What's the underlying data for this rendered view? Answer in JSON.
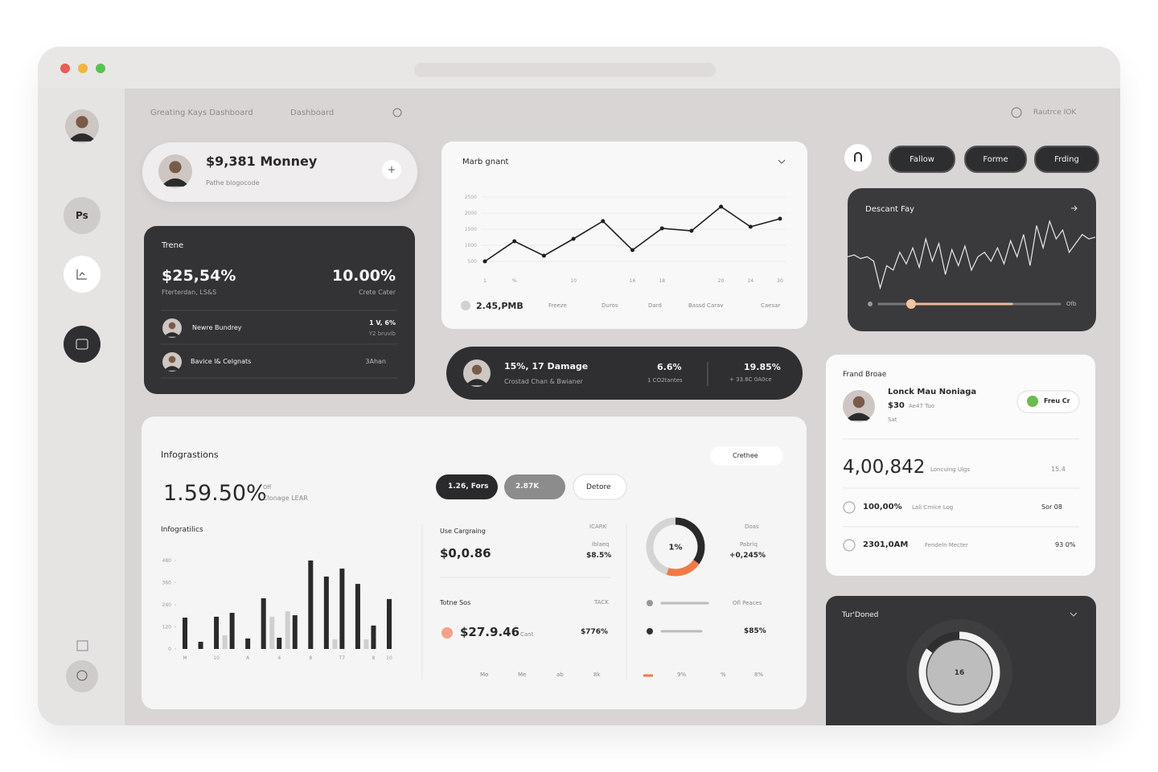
{
  "nav": {
    "title": "Greating Kays Dashboard",
    "tab": "Dashboard",
    "user": "Rautrce IOK"
  },
  "sidebar": {
    "badge": "Ps"
  },
  "profile_card": {
    "amount": "$9,381 Monney",
    "subtitle": "Pathe blogocode"
  },
  "trend_card": {
    "title": "Trene",
    "left_value": "$25,54%",
    "left_label": "Fterterdan, LS&S",
    "right_value": "10.00%",
    "right_label": "Crete Cater",
    "rows": [
      {
        "name": "Newre Bundrey",
        "value": "1 V, 6%",
        "note": "Y2 bruvib"
      },
      {
        "name": "Bavice l& Celgnats",
        "value": "3Ahan"
      }
    ]
  },
  "line_card": {
    "title": "Marb gnant",
    "chart": {
      "type": "line",
      "color": "#1f1f21",
      "ylim": [
        500,
        2500
      ],
      "yticks": [
        500,
        1000,
        1500,
        2000,
        2500
      ],
      "grid": true,
      "categories": [
        "1",
        "%",
        null,
        "10",
        null,
        "16",
        "18",
        null,
        "20",
        "24",
        "30"
      ],
      "values": [
        500,
        1125,
        675,
        1200,
        1750,
        850,
        1525,
        1450,
        2200,
        1575,
        1825
      ]
    },
    "legend": {
      "value": "2.45,PMB",
      "items": [
        "Freeze",
        "Duros",
        "Dard",
        "Bassd Carav",
        "Caesar"
      ]
    }
  },
  "actions": [
    "Fallow",
    "Forme",
    "Frding"
  ],
  "spark_card": {
    "title": "Descant Fay",
    "chart": {
      "type": "line",
      "color": "#e8e8e8",
      "values": [
        50,
        52,
        48,
        50,
        45,
        15,
        40,
        35,
        55,
        42,
        60,
        38,
        70,
        45,
        65,
        30,
        58,
        40,
        62,
        35,
        50,
        55,
        45,
        60,
        42,
        68,
        50,
        75,
        40,
        85,
        60,
        90,
        70,
        80,
        55,
        65,
        75,
        70,
        72
      ]
    },
    "slider_label": "Ofb"
  },
  "damage_strip": {
    "title": "15%, 17 Damage",
    "subtitle": "Crostad Chan & Bwianer",
    "stat1": {
      "value": "6.6%",
      "label": "1 CO2tantes"
    },
    "stat2": {
      "value": "19.85%",
      "label": "+ 33.8C 0A0ce"
    }
  },
  "friend_card": {
    "title": "Frand Broae",
    "name": "Lonck Mau Noniaga",
    "price": "$30",
    "meta": "Ae47 Tuo",
    "rating_label": "Sat",
    "button": "Freu Cr",
    "total": "4,00,842",
    "total_label": "Loncuing Ulgs",
    "total_change": "15.4",
    "rows": [
      {
        "value": "100,00%",
        "label": "Lali Crnice Log",
        "right": "Sor 08"
      },
      {
        "value": "2301,0AM",
        "label": "Fendeln Mecter",
        "right": "93 0%"
      }
    ]
  },
  "info_card": {
    "title": "Infograstions",
    "big_value": "1.59.50%",
    "big_unit": "Off",
    "big_label": "Clonage LEAR",
    "buttons": [
      "1.26, Fors",
      "2.87K",
      "Detore"
    ],
    "dropdown": "Crethee",
    "chart_title": "Infogratilics",
    "bar_chart": {
      "type": "bar",
      "ylim": [
        0,
        480
      ],
      "yticks": [
        0,
        120,
        240,
        360,
        480
      ],
      "categories": [
        "M",
        null,
        "10",
        null,
        "A",
        null,
        "4",
        null,
        "8",
        null,
        "T7",
        null,
        "8",
        "10"
      ],
      "series": [
        {
          "color": "#2a2a2c",
          "values": [
            170,
            39,
            175,
            196,
            57,
            275,
            61,
            183,
            480,
            393,
            436,
            353,
            127,
            271
          ]
        },
        {
          "color": "#cfcfcf",
          "values": [
            null,
            null,
            null,
            74,
            null,
            null,
            175,
            205,
            null,
            null,
            52,
            null,
            52,
            null
          ]
        }
      ]
    },
    "stats": {
      "title": "Use Cargraing",
      "value": "$0,0.86",
      "tag": "ICARK",
      "sub": "Iblaeq",
      "side_value": "$8.5%",
      "title2": "Totne Sos",
      "value2": "$27.9.46",
      "unit2": "Cant",
      "side_value2": "$776%",
      "tag2": "TACK",
      "footer": [
        "Mo",
        "Me",
        "ab",
        "8k"
      ]
    },
    "donut": {
      "type": "pie",
      "values": [
        35,
        20,
        45
      ],
      "colors": [
        "#2a2a2c",
        "#f07a45",
        "#d4d4d4"
      ],
      "center_label": "1%"
    },
    "donut_stats": {
      "tag": "Doas",
      "sub": "Pabriq",
      "value": "+0,245%",
      "label": "Ofl Peaces",
      "value2": "$85%",
      "footer": [
        "9%",
        "%",
        "8%"
      ]
    }
  },
  "dark_card": {
    "title": "Tur'Doned",
    "donut": {
      "type": "pie",
      "values": [
        85,
        15
      ],
      "colors": [
        "#f4f4f4",
        "#2e2e30"
      ],
      "center_label": "16"
    }
  }
}
